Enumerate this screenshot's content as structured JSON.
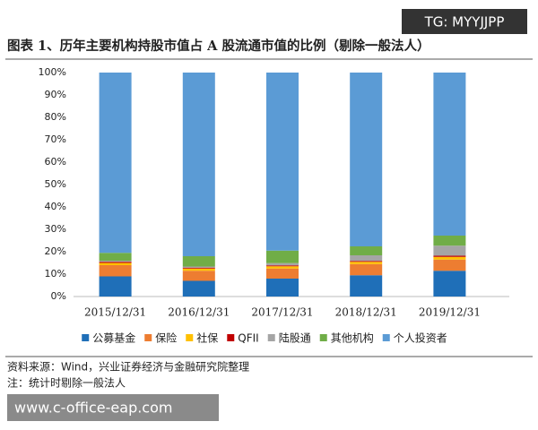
{
  "header": {
    "watermark": "TG: MYYJJPP"
  },
  "chart_data": {
    "type": "stacked-bar",
    "title": "图表 1、历年主要机构持股市值占 A 股流通市值的比例（剔除一般法人）",
    "categories": [
      "2015/12/31",
      "2016/12/31",
      "2017/12/31",
      "2018/12/31",
      "2019/12/31"
    ],
    "series": [
      {
        "name": "公募基金",
        "color": "#1f6fb8",
        "values": [
          9,
          7,
          8,
          9.5,
          11.5
        ]
      },
      {
        "name": "保险",
        "color": "#ed7d31",
        "values": [
          5,
          4.5,
          4.5,
          5,
          5
        ]
      },
      {
        "name": "社保",
        "color": "#ffc000",
        "values": [
          1,
          1,
          1,
          1,
          1.2
        ]
      },
      {
        "name": "QFII",
        "color": "#c00000",
        "values": [
          0.5,
          0.4,
          0.4,
          0.4,
          0.5
        ]
      },
      {
        "name": "陆股通",
        "color": "#a5a5a5",
        "values": [
          0.5,
          0.5,
          1,
          2.5,
          4.5
        ]
      },
      {
        "name": "其他机构",
        "color": "#70ad47",
        "values": [
          3.5,
          4.6,
          5.6,
          4,
          4.5
        ]
      },
      {
        "name": "个人投资者",
        "color": "#5b9bd5",
        "values": [
          80.5,
          82,
          79.5,
          77.6,
          72.8
        ]
      }
    ],
    "ylim": [
      0,
      100
    ],
    "yticks": [
      {
        "value": 0,
        "label": "0%"
      },
      {
        "value": 10,
        "label": "10%"
      },
      {
        "value": 20,
        "label": "20%"
      },
      {
        "value": 30,
        "label": "30%"
      },
      {
        "value": 40,
        "label": "40%"
      },
      {
        "value": 50,
        "label": "50%"
      },
      {
        "value": 60,
        "label": "60%"
      },
      {
        "value": 70,
        "label": "70%"
      },
      {
        "value": 80,
        "label": "80%"
      },
      {
        "value": 90,
        "label": "90%"
      },
      {
        "value": 100,
        "label": "100%"
      }
    ],
    "legend": "bottom"
  },
  "footer": {
    "source": "资料来源：Wind，兴业证券经济与金融研究院整理",
    "note": "注：统计时剔除一般法人",
    "watermark": "www.c-office-eap.com"
  }
}
